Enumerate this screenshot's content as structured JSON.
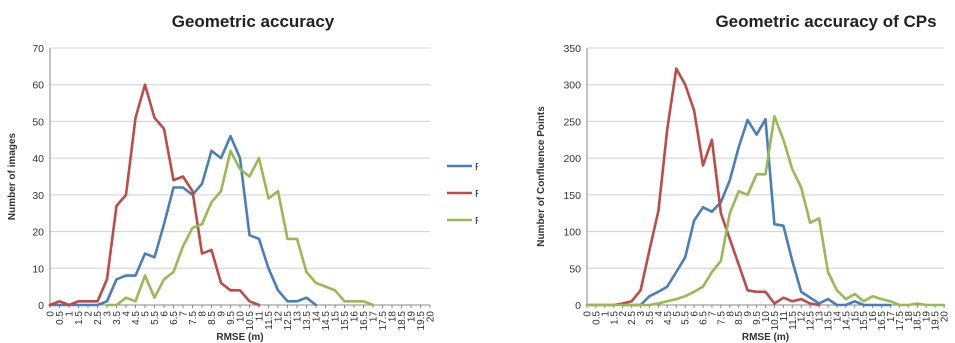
{
  "colors": {
    "RMSEx": "#4a7ebb",
    "RMSEy": "#be4b48",
    "RMSEr": "#98b954"
  },
  "chart_data": [
    {
      "type": "line",
      "title": "Geometric accuracy",
      "xlabel": "RMSE (m)",
      "ylabel": "Number of images",
      "xlim": [
        0,
        20
      ],
      "ylim": [
        0,
        70
      ],
      "yticks": [
        0,
        10,
        20,
        30,
        40,
        50,
        60,
        70
      ],
      "xticks": [
        0,
        0.5,
        1,
        1.5,
        2,
        2.5,
        3,
        3.5,
        4,
        4.5,
        5,
        5.5,
        6,
        6.5,
        7,
        7.5,
        8,
        8.5,
        9,
        9.5,
        10,
        10.5,
        11,
        11.5,
        12,
        12.5,
        13,
        13.5,
        14,
        14.5,
        15,
        15.5,
        16,
        16.5,
        17,
        17.5,
        18,
        18.5,
        19,
        19.5,
        20
      ],
      "xtick_labels": [
        "0",
        "0.5",
        "1",
        "1.5",
        "2",
        "2.5",
        "3",
        "3.5",
        "4",
        "4.5",
        "5",
        "5.5",
        "6",
        "6.5",
        "7",
        "7.5",
        "8",
        "8.5",
        "9",
        "9.5",
        "10",
        "10.5",
        "11",
        "11.5",
        "12",
        "12.5",
        "13",
        "13.5",
        "14",
        "14.5",
        "15",
        "15.5",
        "16",
        "16.5",
        "17",
        "17.5",
        "18",
        "18.5",
        "19",
        "19.5",
        "20"
      ],
      "grid": true,
      "legend": "right",
      "series": [
        {
          "name": "RMSEx",
          "x": [
            0,
            0.5,
            1,
            1.5,
            2,
            2.5,
            3,
            3.5,
            4,
            4.5,
            5,
            5.5,
            6,
            6.5,
            7,
            7.5,
            8,
            8.5,
            9,
            9.5,
            10,
            10.5,
            11,
            11.5,
            12,
            12.5,
            13,
            13.5,
            14
          ],
          "values": [
            0,
            0,
            0,
            0,
            0,
            0,
            1,
            7,
            8,
            8,
            14,
            13,
            22,
            32,
            32,
            30,
            33,
            42,
            40,
            46,
            40,
            19,
            18,
            10,
            4,
            1,
            1,
            2,
            0
          ]
        },
        {
          "name": "RMSEy",
          "x": [
            0,
            0.5,
            1,
            1.5,
            2,
            2.5,
            3,
            3.5,
            4,
            4.5,
            5,
            5.5,
            6,
            6.5,
            7,
            7.5,
            8,
            8.5,
            9,
            9.5,
            10,
            10.5,
            11
          ],
          "values": [
            0,
            1,
            0,
            1,
            1,
            1,
            7,
            27,
            30,
            51,
            60,
            51,
            48,
            34,
            35,
            31,
            14,
            15,
            6,
            4,
            4,
            1,
            0
          ]
        },
        {
          "name": "RMSEr",
          "x": [
            3,
            3.5,
            4,
            4.5,
            5,
            5.5,
            6,
            6.5,
            7,
            7.5,
            8,
            8.5,
            9,
            9.5,
            10,
            10.5,
            11,
            11.5,
            12,
            12.5,
            13,
            13.5,
            14,
            14.5,
            15,
            15.5,
            16,
            16.5,
            17
          ],
          "values": [
            0,
            0,
            2,
            1,
            8,
            2,
            7,
            9,
            16,
            21,
            22,
            28,
            31,
            42,
            37,
            35,
            40,
            29,
            31,
            18,
            18,
            9,
            6,
            5,
            4,
            1,
            1,
            1,
            0
          ]
        }
      ]
    },
    {
      "type": "line",
      "title": "Geometric accuracy of CPs",
      "xlabel": "RMSE (m)",
      "ylabel": "Number of Confluence Points",
      "xlim": [
        0,
        20
      ],
      "ylim": [
        0,
        350
      ],
      "yticks": [
        0,
        50,
        100,
        150,
        200,
        250,
        300,
        350
      ],
      "xticks": [
        0,
        0.5,
        1,
        1.5,
        2,
        2.5,
        3,
        3.5,
        4,
        4.5,
        5,
        5.5,
        6,
        6.5,
        7,
        7.5,
        8,
        8.5,
        9,
        9.5,
        10,
        10.5,
        11,
        11.5,
        12,
        12.5,
        13,
        13.5,
        14,
        14.5,
        15,
        15.5,
        16,
        16.5,
        17,
        17.5,
        18,
        18.5,
        19,
        19.5,
        20
      ],
      "xtick_labels": [
        "0",
        "0.5",
        "1",
        "1.5",
        "2",
        "2.5",
        "3",
        "3.5",
        "4",
        "4.5",
        "5",
        "5.5",
        "6",
        "6.5",
        "7",
        "7.5",
        "8",
        "8.5",
        "9",
        "9.5",
        "10",
        "10.5",
        "11",
        "11.5",
        "12",
        "12.5",
        "13",
        "13.5",
        "14",
        "14.5",
        "15",
        "15.5",
        "16",
        "16.5",
        "17",
        "17.5",
        "18",
        "18.5",
        "19",
        "19.5",
        "20"
      ],
      "grid": true,
      "series": [
        {
          "name": "RMSEx",
          "x": [
            2,
            2.5,
            3,
            3.5,
            4,
            4.5,
            5,
            5.5,
            6,
            6.5,
            7,
            7.5,
            8,
            8.5,
            9,
            9.5,
            10,
            10.5,
            11,
            11.5,
            12,
            12.5,
            13,
            13.5,
            14,
            14.5,
            15,
            15.5,
            16,
            16.5,
            17
          ],
          "values": [
            0,
            0,
            0,
            12,
            18,
            25,
            45,
            65,
            115,
            133,
            127,
            140,
            170,
            215,
            252,
            232,
            253,
            110,
            108,
            60,
            18,
            10,
            2,
            8,
            0,
            0,
            5,
            0,
            0,
            0,
            0
          ]
        },
        {
          "name": "RMSEy",
          "x": [
            0,
            0.5,
            1,
            1.5,
            2,
            2.5,
            3,
            3.5,
            4,
            4.5,
            5,
            5.5,
            6,
            6.5,
            7,
            7.5,
            8,
            8.5,
            9,
            9.5,
            10,
            10.5,
            11,
            11.5,
            12,
            12.5,
            13
          ],
          "values": [
            0,
            0,
            0,
            0,
            2,
            5,
            20,
            75,
            128,
            240,
            322,
            300,
            265,
            190,
            225,
            125,
            90,
            55,
            20,
            18,
            18,
            2,
            10,
            5,
            8,
            2,
            0
          ]
        },
        {
          "name": "RMSEr",
          "x": [
            0,
            0.5,
            1,
            1.5,
            2,
            2.5,
            3,
            3.5,
            4,
            4.5,
            5,
            5.5,
            6,
            6.5,
            7,
            7.5,
            8,
            8.5,
            9,
            9.5,
            10,
            10.5,
            11,
            11.5,
            12,
            12.5,
            13,
            13.5,
            14,
            14.5,
            15,
            15.5,
            16,
            16.5,
            17,
            17.5,
            18,
            18.5,
            19,
            19.5,
            20
          ],
          "values": [
            0,
            0,
            0,
            0,
            0,
            0,
            0,
            0,
            2,
            5,
            8,
            12,
            18,
            25,
            45,
            60,
            125,
            155,
            150,
            178,
            178,
            257,
            225,
            185,
            160,
            112,
            118,
            45,
            20,
            8,
            15,
            5,
            12,
            8,
            5,
            0,
            0,
            2,
            0,
            0,
            0
          ]
        }
      ]
    }
  ]
}
